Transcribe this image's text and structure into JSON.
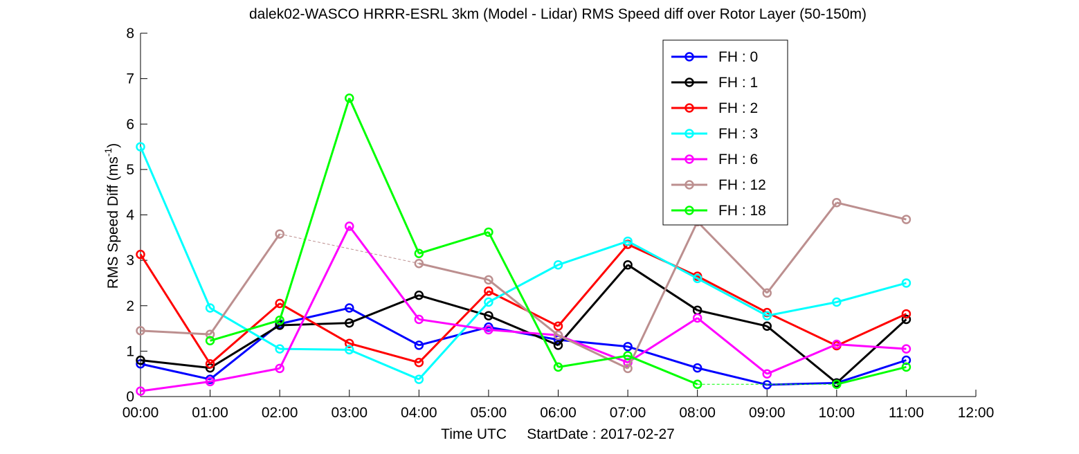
{
  "chart_data": {
    "type": "line",
    "title": "dalek02-WASCO HRRR-ESRL 3km (Model - Lidar) RMS Speed diff over Rotor Layer (50-150m)",
    "xlabel": "Time UTC     StartDate : 2017-02-27",
    "ylabel": "RMS Speed Diff (ms",
    "ylabel_sup": "-1",
    "ylabel_close": ")",
    "xlim": [
      0,
      12
    ],
    "ylim": [
      0,
      8
    ],
    "xticks": [
      0,
      1,
      2,
      3,
      4,
      5,
      6,
      7,
      8,
      9,
      10,
      11,
      12
    ],
    "xtick_labels": [
      "00:00",
      "01:00",
      "02:00",
      "03:00",
      "04:00",
      "05:00",
      "06:00",
      "07:00",
      "08:00",
      "09:00",
      "10:00",
      "11:00",
      "12:00"
    ],
    "yticks": [
      0,
      1,
      2,
      3,
      4,
      5,
      6,
      7,
      8
    ],
    "ytick_labels": [
      "0",
      "1",
      "2",
      "3",
      "4",
      "5",
      "6",
      "7",
      "8"
    ],
    "grid": false,
    "legend_position": "top-right",
    "series": [
      {
        "name": "FH : 0",
        "color": "#0000ff",
        "x": [
          0,
          1,
          2,
          3,
          4,
          5,
          6,
          7,
          8,
          9,
          10,
          11
        ],
        "y": [
          0.72,
          0.38,
          1.6,
          1.95,
          1.13,
          1.53,
          1.25,
          1.1,
          0.63,
          0.26,
          0.3,
          0.8
        ]
      },
      {
        "name": "FH : 1",
        "color": "#000000",
        "x": [
          0,
          1,
          2,
          3,
          4,
          5,
          6,
          7,
          8,
          9,
          10,
          11
        ],
        "y": [
          0.8,
          0.63,
          1.57,
          1.62,
          2.23,
          1.78,
          1.13,
          2.9,
          1.9,
          1.55,
          0.3,
          1.7
        ]
      },
      {
        "name": "FH : 2",
        "color": "#ff0000",
        "x": [
          0,
          1,
          2,
          3,
          4,
          5,
          6,
          7,
          8,
          9,
          10,
          11
        ],
        "y": [
          3.13,
          0.72,
          2.05,
          1.17,
          0.75,
          2.32,
          1.55,
          3.35,
          2.65,
          1.85,
          1.12,
          1.82
        ]
      },
      {
        "name": "FH : 3",
        "color": "#00ffff",
        "x": [
          0,
          1,
          2,
          3,
          4,
          5,
          6,
          7,
          8,
          9,
          10,
          11
        ],
        "y": [
          5.5,
          1.95,
          1.05,
          1.03,
          0.38,
          2.08,
          2.9,
          3.42,
          2.6,
          1.78,
          2.08,
          2.5
        ]
      },
      {
        "name": "FH : 6",
        "color": "#ff00ff",
        "x": [
          0,
          1,
          2,
          3,
          4,
          5,
          6,
          7,
          8,
          9,
          10,
          11
        ],
        "y": [
          0.12,
          0.33,
          0.62,
          3.75,
          1.7,
          1.47,
          1.35,
          0.75,
          1.73,
          0.5,
          1.15,
          1.05
        ]
      },
      {
        "name": "FH : 12",
        "color": "#bc8f8f",
        "x": [
          0,
          1,
          2,
          4,
          5,
          6,
          7,
          8,
          9,
          10,
          11
        ],
        "y": [
          1.45,
          1.37,
          3.58,
          2.93,
          2.57,
          1.35,
          0.62,
          3.85,
          2.28,
          4.27,
          3.9
        ],
        "gap_after_x": [
          2
        ]
      },
      {
        "name": "FH : 18",
        "color": "#00ff00",
        "x": [
          1,
          2,
          3,
          4,
          5,
          6,
          7,
          8,
          10,
          11
        ],
        "y": [
          1.23,
          1.68,
          6.57,
          3.15,
          3.62,
          0.65,
          0.9,
          0.27,
          0.27,
          0.65
        ],
        "gap_after_x": [
          8
        ]
      }
    ]
  }
}
